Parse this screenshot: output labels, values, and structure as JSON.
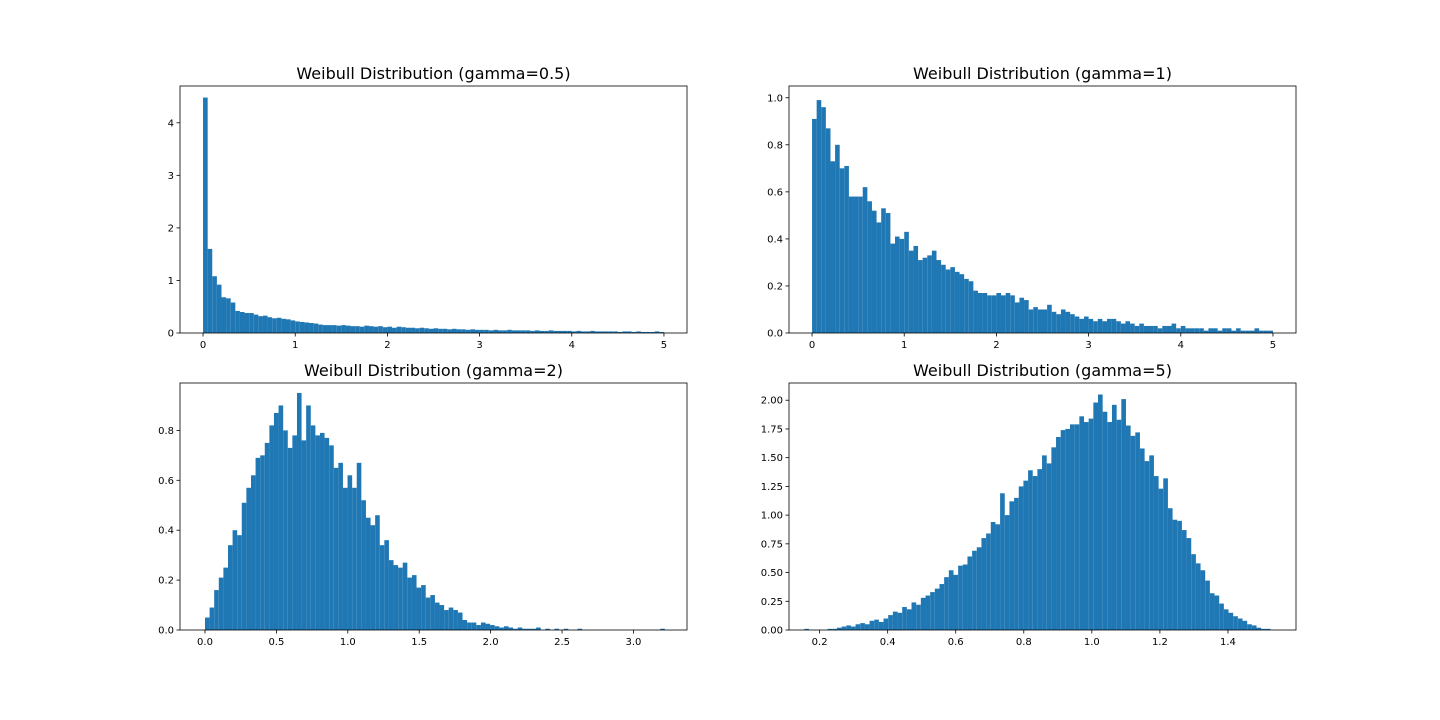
{
  "chart_data": [
    {
      "type": "bar",
      "title": "Weibull Distribution (gamma=0.5)",
      "bar_color": "#1f77b4",
      "xlim": [
        -0.25,
        5.25
      ],
      "ylim": [
        0,
        4.7
      ],
      "xticks": [
        0,
        1,
        2,
        3,
        4,
        5
      ],
      "xtick_labels": [
        "0",
        "1",
        "2",
        "3",
        "4",
        "5"
      ],
      "yticks": [
        0,
        1,
        2,
        3,
        4
      ],
      "ytick_labels": [
        "0",
        "1",
        "2",
        "3",
        "4"
      ],
      "bin_start": 0.0,
      "bin_width": 0.05,
      "values": [
        4.48,
        1.6,
        1.08,
        0.92,
        0.68,
        0.66,
        0.58,
        0.42,
        0.4,
        0.38,
        0.38,
        0.35,
        0.32,
        0.33,
        0.3,
        0.28,
        0.29,
        0.27,
        0.26,
        0.24,
        0.22,
        0.21,
        0.2,
        0.19,
        0.18,
        0.16,
        0.15,
        0.15,
        0.15,
        0.14,
        0.15,
        0.14,
        0.13,
        0.13,
        0.12,
        0.14,
        0.13,
        0.12,
        0.13,
        0.11,
        0.12,
        0.1,
        0.12,
        0.11,
        0.1,
        0.1,
        0.09,
        0.1,
        0.09,
        0.08,
        0.09,
        0.08,
        0.08,
        0.07,
        0.08,
        0.07,
        0.07,
        0.06,
        0.07,
        0.06,
        0.06,
        0.06,
        0.05,
        0.06,
        0.05,
        0.05,
        0.06,
        0.05,
        0.05,
        0.05,
        0.05,
        0.04,
        0.05,
        0.04,
        0.04,
        0.05,
        0.04,
        0.04,
        0.04,
        0.04,
        0.03,
        0.04,
        0.03,
        0.03,
        0.04,
        0.03,
        0.03,
        0.03,
        0.03,
        0.03,
        0.02,
        0.03,
        0.03,
        0.02,
        0.03,
        0.02,
        0.02,
        0.02,
        0.03,
        0.02
      ]
    },
    {
      "type": "bar",
      "title": "Weibull Distribution (gamma=1)",
      "bar_color": "#1f77b4",
      "xlim": [
        -0.25,
        5.25
      ],
      "ylim": [
        0,
        1.05
      ],
      "xticks": [
        0,
        1,
        2,
        3,
        4,
        5
      ],
      "xtick_labels": [
        "0",
        "1",
        "2",
        "3",
        "4",
        "5"
      ],
      "yticks": [
        0,
        0.2,
        0.4,
        0.6,
        0.8,
        1.0
      ],
      "ytick_labels": [
        "0.0",
        "0.2",
        "0.4",
        "0.6",
        "0.8",
        "1.0"
      ],
      "bin_start": 0.0,
      "bin_width": 0.05,
      "values": [
        0.91,
        0.99,
        0.96,
        0.87,
        0.73,
        0.8,
        0.7,
        0.71,
        0.58,
        0.58,
        0.58,
        0.62,
        0.56,
        0.52,
        0.47,
        0.53,
        0.51,
        0.38,
        0.41,
        0.4,
        0.43,
        0.35,
        0.37,
        0.31,
        0.32,
        0.33,
        0.35,
        0.31,
        0.29,
        0.27,
        0.28,
        0.26,
        0.25,
        0.23,
        0.22,
        0.18,
        0.17,
        0.17,
        0.16,
        0.16,
        0.17,
        0.16,
        0.17,
        0.16,
        0.13,
        0.15,
        0.14,
        0.1,
        0.11,
        0.1,
        0.1,
        0.12,
        0.09,
        0.08,
        0.1,
        0.09,
        0.08,
        0.07,
        0.06,
        0.07,
        0.06,
        0.05,
        0.06,
        0.05,
        0.06,
        0.06,
        0.05,
        0.04,
        0.05,
        0.04,
        0.03,
        0.04,
        0.03,
        0.03,
        0.03,
        0.02,
        0.03,
        0.03,
        0.04,
        0.02,
        0.03,
        0.02,
        0.02,
        0.02,
        0.02,
        0.01,
        0.02,
        0.02,
        0.01,
        0.02,
        0.02,
        0.01,
        0.02,
        0.01,
        0.01,
        0.01,
        0.02,
        0.01,
        0.01,
        0.01
      ]
    },
    {
      "type": "bar",
      "title": "Weibull Distribution (gamma=2)",
      "bar_color": "#1f77b4",
      "xlim": [
        -0.175,
        3.375
      ],
      "ylim": [
        0,
        0.99
      ],
      "xticks": [
        0.0,
        0.5,
        1.0,
        1.5,
        2.0,
        2.5,
        3.0
      ],
      "xtick_labels": [
        "0.0",
        "0.5",
        "1.0",
        "1.5",
        "2.0",
        "2.5",
        "3.0"
      ],
      "yticks": [
        0,
        0.2,
        0.4,
        0.6,
        0.8
      ],
      "ytick_labels": [
        "0.0",
        "0.2",
        "0.4",
        "0.6",
        "0.8"
      ],
      "bin_start": 0.0,
      "bin_width": 0.0322,
      "values": [
        0.05,
        0.09,
        0.16,
        0.21,
        0.25,
        0.34,
        0.4,
        0.38,
        0.51,
        0.57,
        0.62,
        0.69,
        0.7,
        0.75,
        0.82,
        0.87,
        0.9,
        0.8,
        0.73,
        0.78,
        0.95,
        0.76,
        0.9,
        0.82,
        0.78,
        0.79,
        0.77,
        0.74,
        0.65,
        0.67,
        0.57,
        0.62,
        0.57,
        0.67,
        0.52,
        0.45,
        0.42,
        0.46,
        0.34,
        0.36,
        0.28,
        0.26,
        0.25,
        0.27,
        0.21,
        0.22,
        0.17,
        0.18,
        0.13,
        0.14,
        0.11,
        0.1,
        0.08,
        0.09,
        0.08,
        0.07,
        0.04,
        0.03,
        0.03,
        0.02,
        0.03,
        0.025,
        0.02,
        0.015,
        0.01,
        0.015,
        0.01,
        0.005,
        0.01,
        0.005,
        0.005,
        0.005,
        0.01,
        0.0,
        0.005,
        0.0,
        0.005,
        0.0,
        0.005,
        0.0,
        0.0,
        0.005,
        0.0,
        0.0,
        0.0,
        0.0,
        0.0,
        0.0,
        0.0,
        0.0,
        0.0,
        0.0,
        0.0,
        0.0,
        0.0,
        0.0,
        0.0,
        0.0,
        0.0,
        0.005
      ]
    },
    {
      "type": "bar",
      "title": "Weibull Distribution (gamma=5)",
      "bar_color": "#1f77b4",
      "xlim": [
        0.11,
        1.6
      ],
      "ylim": [
        0,
        2.15
      ],
      "xticks": [
        0.2,
        0.4,
        0.6,
        0.8,
        1.0,
        1.2,
        1.4
      ],
      "xtick_labels": [
        "0.2",
        "0.4",
        "0.6",
        "0.8",
        "1.0",
        "1.2",
        "1.4"
      ],
      "yticks": [
        0,
        0.25,
        0.5,
        0.75,
        1.0,
        1.25,
        1.5,
        1.75,
        2.0
      ],
      "ytick_labels": [
        "0.00",
        "0.25",
        "0.50",
        "0.75",
        "1.00",
        "1.25",
        "1.50",
        "1.75",
        "2.00"
      ],
      "bin_start": 0.155,
      "bin_width": 0.0137,
      "values": [
        0.01,
        0.0,
        0.0,
        0.0,
        0.0,
        0.01,
        0.01,
        0.02,
        0.03,
        0.04,
        0.03,
        0.05,
        0.06,
        0.05,
        0.08,
        0.09,
        0.07,
        0.1,
        0.13,
        0.16,
        0.15,
        0.2,
        0.18,
        0.24,
        0.22,
        0.28,
        0.3,
        0.33,
        0.36,
        0.4,
        0.46,
        0.52,
        0.48,
        0.56,
        0.57,
        0.64,
        0.69,
        0.72,
        0.8,
        0.84,
        0.94,
        0.92,
        1.19,
        1.0,
        1.12,
        1.15,
        1.25,
        1.3,
        1.39,
        1.34,
        1.4,
        1.52,
        1.45,
        1.59,
        1.68,
        1.74,
        1.75,
        1.79,
        1.79,
        1.86,
        1.81,
        1.84,
        1.98,
        2.05,
        1.9,
        1.81,
        1.96,
        1.83,
        2.01,
        1.78,
        1.69,
        1.72,
        1.58,
        1.47,
        1.52,
        1.34,
        1.23,
        1.32,
        1.06,
        0.96,
        0.95,
        0.87,
        0.8,
        0.66,
        0.58,
        0.52,
        0.43,
        0.32,
        0.3,
        0.23,
        0.18,
        0.15,
        0.12,
        0.1,
        0.08,
        0.05,
        0.04,
        0.02,
        0.01,
        0.01
      ]
    }
  ]
}
